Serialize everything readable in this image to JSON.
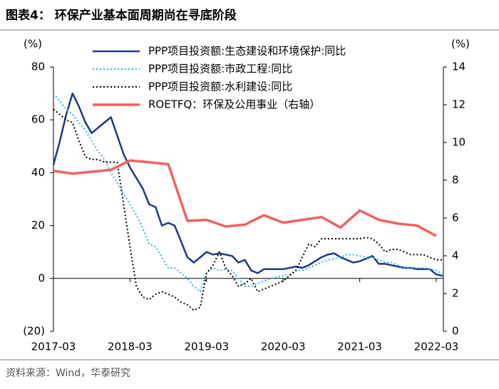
{
  "chart_data": {
    "type": "line",
    "title": "图表4：  环保产业基本面周期尚在寻底阶段",
    "source": "资料来源：Wind，华泰研究",
    "y_label": "(%)",
    "y2_label": "(%)",
    "x": [
      "2017-03",
      "2017-04",
      "2017-05",
      "2017-06",
      "2017-07",
      "2017-08",
      "2017-09",
      "2017-10",
      "2017-11",
      "2017-12",
      "2018-01",
      "2018-02",
      "2018-03",
      "2018-04",
      "2018-05",
      "2018-06",
      "2018-07",
      "2018-08",
      "2018-09",
      "2018-10",
      "2018-11",
      "2018-12",
      "2019-01",
      "2019-02",
      "2019-03",
      "2019-04",
      "2019-05",
      "2019-06",
      "2019-07",
      "2019-08",
      "2019-09",
      "2019-10",
      "2019-11",
      "2019-12",
      "2020-01",
      "2020-02",
      "2020-03",
      "2020-04",
      "2020-05",
      "2020-06",
      "2020-07",
      "2020-08",
      "2020-09",
      "2020-10",
      "2020-11",
      "2020-12",
      "2021-01",
      "2021-02",
      "2021-03",
      "2021-04",
      "2021-05",
      "2021-06",
      "2021-07",
      "2021-08",
      "2021-09",
      "2021-10",
      "2021-11",
      "2021-12",
      "2022-01",
      "2022-02",
      "2022-03",
      "2022-04"
    ],
    "xticks": [
      "2017-03",
      "2018-03",
      "2019-03",
      "2020-03",
      "2021-03",
      "2022-03"
    ],
    "ylim": [
      -20,
      80
    ],
    "yticks": [
      {
        "value": -20,
        "label": "(20)"
      },
      0,
      20,
      40,
      60,
      80
    ],
    "y2lim": [
      0,
      14
    ],
    "y2ticks": [
      0,
      2,
      4,
      6,
      8,
      10,
      12,
      14
    ],
    "legend": "upper center",
    "series": [
      {
        "name": "PPP项目投资额:生态建设和环境保护:同比",
        "color": "#1f3a85",
        "style": "solid",
        "linewidth": 2.5,
        "values": [
          43,
          52,
          62,
          70,
          65,
          59,
          55,
          57,
          59,
          61,
          54,
          47,
          42,
          38,
          34,
          28,
          27,
          20,
          21,
          20,
          14,
          8,
          6,
          8,
          10,
          9,
          9.5,
          9,
          8.5,
          6,
          7,
          3,
          2,
          3.5,
          3.5,
          3.5,
          3.5,
          4,
          4.5,
          4,
          5,
          6.5,
          8,
          9,
          9.5,
          8,
          7,
          6,
          6.5,
          7.5,
          8.5,
          5.5,
          5.5,
          5,
          4.5,
          4,
          4,
          3.5,
          3.5,
          3.5,
          1.5,
          1
        ]
      },
      {
        "name": "PPP项目投资额:市政工程:同比",
        "color": "#2db3e6",
        "style": "dotted",
        "linewidth": 2,
        "values": [
          70,
          67,
          64,
          62,
          59,
          56,
          52,
          48,
          45,
          40,
          36,
          32,
          28,
          24,
          19,
          13,
          12,
          8,
          4,
          4,
          2,
          0,
          -3,
          -5,
          2,
          4,
          3,
          3.5,
          3,
          0,
          -3,
          -3,
          -2,
          -1,
          0,
          0.5,
          1,
          1.5,
          3,
          3,
          4,
          5,
          6,
          7,
          7.5,
          8,
          9,
          9,
          8.5,
          8,
          8,
          7,
          6,
          6,
          5,
          4,
          4,
          4,
          4,
          3.5,
          3,
          2
        ]
      },
      {
        "name": "PPP项目投资额:水利建设:同比",
        "color": "#000000",
        "style": "dotted",
        "linewidth": 2,
        "values": [
          64,
          62,
          60,
          59,
          52,
          46,
          45,
          45,
          44,
          44,
          44,
          28,
          12,
          -3,
          -7,
          -8,
          -6,
          -5,
          -6,
          -7,
          -9,
          -10,
          -12,
          -11,
          2,
          5,
          10,
          4,
          1,
          -3,
          -2,
          0,
          -5,
          -4,
          -3,
          -2,
          -1,
          1,
          3,
          8,
          13,
          12,
          15,
          15,
          15,
          15,
          15,
          15,
          15,
          15.5,
          15,
          13,
          10,
          11,
          11,
          10,
          9,
          9,
          9,
          8,
          7,
          7
        ]
      },
      {
        "name": "ROETFQ：环保及公用事业（右轴）",
        "color": "#f0625e",
        "style": "solid",
        "linewidth": 3.5,
        "axis": "y2",
        "x": [
          "2017-03",
          "2017-06",
          "2017-09",
          "2017-12",
          "2018-03",
          "2018-06",
          "2018-09",
          "2018-12",
          "2019-03",
          "2019-06",
          "2019-09",
          "2019-12",
          "2020-03",
          "2020-06",
          "2020-09",
          "2020-12",
          "2021-03",
          "2021-06",
          "2021-09",
          "2021-12",
          "2022-03"
        ],
        "values": [
          8.5,
          8.35,
          8.45,
          8.55,
          9.05,
          8.95,
          8.85,
          5.85,
          5.9,
          5.55,
          5.65,
          6.15,
          5.75,
          5.9,
          6.05,
          5.5,
          6.4,
          5.9,
          5.7,
          5.6,
          5.05
        ]
      }
    ]
  }
}
